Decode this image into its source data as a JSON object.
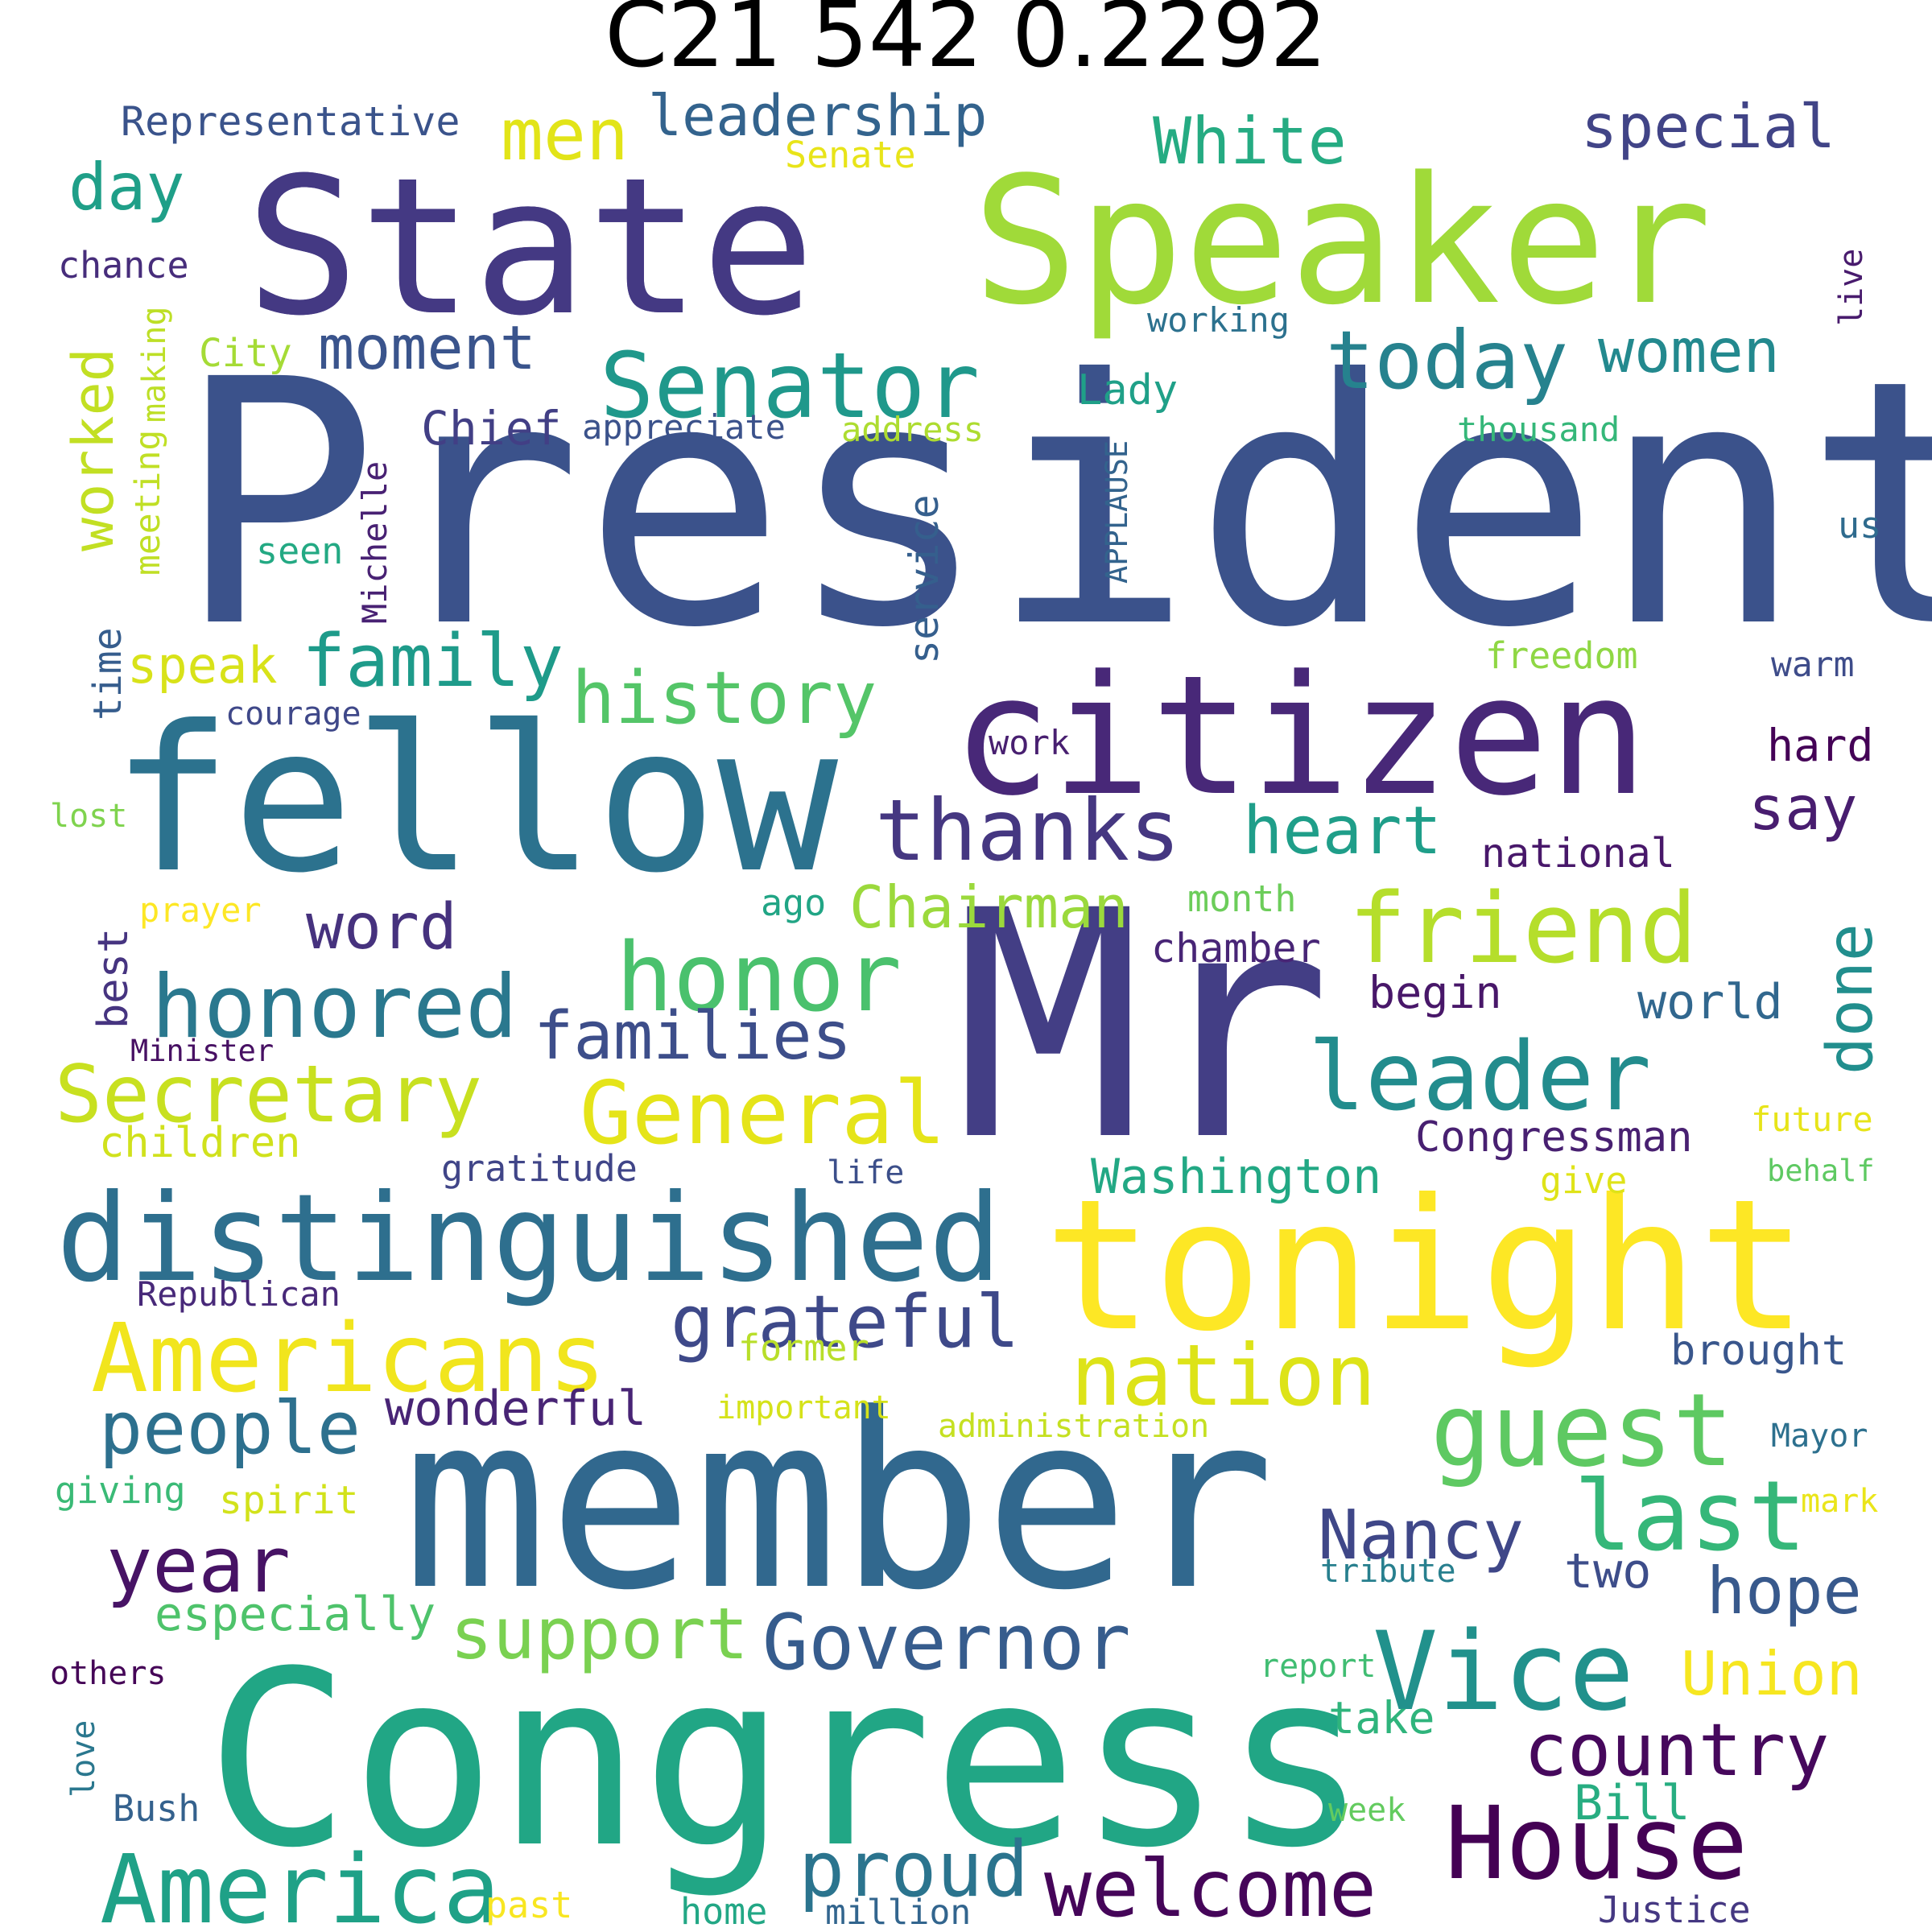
{
  "title": "C21 542 0.2292",
  "words": [
    {
      "text": "President",
      "color": "#3b528b"
    },
    {
      "text": "Mr",
      "color": "#433e85"
    },
    {
      "text": "member",
      "color": "#31688e"
    },
    {
      "text": "Congress",
      "color": "#21a685"
    },
    {
      "text": "fellow",
      "color": "#2c728e"
    },
    {
      "text": "citizen",
      "color": "#482878"
    },
    {
      "text": "State",
      "color": "#443983"
    },
    {
      "text": "Speaker",
      "color": "#a0da39"
    },
    {
      "text": "tonight",
      "color": "#fde725"
    },
    {
      "text": "distinguished",
      "color": "#2e6f8e"
    },
    {
      "text": "Americans",
      "color": "#f1e51d"
    },
    {
      "text": "America",
      "color": "#1fa187"
    },
    {
      "text": "Vice",
      "color": "#21918c"
    },
    {
      "text": "House",
      "color": "#440154"
    },
    {
      "text": "Senator",
      "color": "#1f988b"
    },
    {
      "text": "friend",
      "color": "#b5de2b"
    },
    {
      "text": "honor",
      "color": "#4ac16d"
    },
    {
      "text": "leader",
      "color": "#228c8d"
    },
    {
      "text": "guest",
      "color": "#5ec962"
    },
    {
      "text": "nation",
      "color": "#dde318"
    },
    {
      "text": "General",
      "color": "#e5e419"
    },
    {
      "text": "Governor",
      "color": "#365c8d"
    },
    {
      "text": "honored",
      "color": "#2a788e"
    },
    {
      "text": "Secretary",
      "color": "#c8e020"
    },
    {
      "text": "thanks",
      "color": "#453781"
    },
    {
      "text": "today",
      "color": "#26828e"
    },
    {
      "text": "last",
      "color": "#35b779"
    },
    {
      "text": "welcome",
      "color": "#450559"
    },
    {
      "text": "proud",
      "color": "#2b748e"
    },
    {
      "text": "people",
      "color": "#2d708e"
    },
    {
      "text": "year",
      "color": "#471365"
    },
    {
      "text": "history",
      "color": "#54c568"
    },
    {
      "text": "grateful",
      "color": "#3e4989"
    },
    {
      "text": "country",
      "color": "#46085c"
    },
    {
      "text": "support",
      "color": "#7ad151"
    },
    {
      "text": "Nancy",
      "color": "#3f4788"
    },
    {
      "text": "hope",
      "color": "#38598c"
    },
    {
      "text": "Union",
      "color": "#f6e620"
    },
    {
      "text": "family",
      "color": "#1e9b8a"
    },
    {
      "text": "families",
      "color": "#3d4e8a"
    },
    {
      "text": "heart",
      "color": "#1f9e89"
    },
    {
      "text": "Chairman",
      "color": "#9bd93c"
    },
    {
      "text": "women",
      "color": "#23898e"
    },
    {
      "text": "special",
      "color": "#414487"
    },
    {
      "text": "White",
      "color": "#25ab82"
    },
    {
      "text": "State",
      "color": "#443983"
    },
    {
      "text": "men",
      "color": "#e2e418"
    },
    {
      "text": "day",
      "color": "#1f9f88"
    },
    {
      "text": "moment",
      "color": "#3a548c"
    },
    {
      "text": "word",
      "color": "#46327e"
    },
    {
      "text": "done",
      "color": "#218e8d"
    },
    {
      "text": "say",
      "color": "#481d6f"
    },
    {
      "text": "leadership",
      "color": "#33638d"
    },
    {
      "text": "worked",
      "color": "#c2df23"
    },
    {
      "text": "Washington",
      "color": "#22a884"
    },
    {
      "text": "wonderful",
      "color": "#482475"
    },
    {
      "text": "world",
      "color": "#31678e"
    },
    {
      "text": "speak",
      "color": "#d8e219"
    },
    {
      "text": "Bill",
      "color": "#27ad81"
    },
    {
      "text": "Congressman",
      "color": "#482071"
    },
    {
      "text": "two",
      "color": "#3d4d8a"
    },
    {
      "text": "especially",
      "color": "#4ec36b"
    },
    {
      "text": "take",
      "color": "#2fb47c"
    },
    {
      "text": "begin",
      "color": "#481769"
    },
    {
      "text": "national",
      "color": "#48186a"
    },
    {
      "text": "hard",
      "color": "#440256"
    },
    {
      "text": "brought",
      "color": "#39568c"
    },
    {
      "text": "Chief",
      "color": "#423f85"
    },
    {
      "text": "Lady",
      "color": "#1fa088"
    },
    {
      "text": "service",
      "color": "#355f8d"
    },
    {
      "text": "chamber",
      "color": "#482576"
    },
    {
      "text": "best",
      "color": "#463480"
    },
    {
      "text": "time",
      "color": "#365d8d"
    },
    {
      "text": "spirit",
      "color": "#d2e21b"
    },
    {
      "text": "Representative",
      "color": "#3a538b"
    },
    {
      "text": "Senate",
      "color": "#e8e419"
    },
    {
      "text": "chance",
      "color": "#472d7b"
    },
    {
      "text": "City",
      "color": "#a5db36"
    },
    {
      "text": "making",
      "color": "#bddf26"
    },
    {
      "text": "meeting",
      "color": "#c0df25"
    },
    {
      "text": "Michelle",
      "color": "#482173"
    },
    {
      "text": "APPLAUSE",
      "color": "#33638d"
    },
    {
      "text": "appreciate",
      "color": "#3b528b"
    },
    {
      "text": "address",
      "color": "#addc30"
    },
    {
      "text": "working",
      "color": "#2c718e"
    },
    {
      "text": "thousand",
      "color": "#35b779"
    },
    {
      "text": "live",
      "color": "#481b6d"
    },
    {
      "text": "us",
      "color": "#2f6b8e"
    },
    {
      "text": "seen",
      "color": "#23a983"
    },
    {
      "text": "freedom",
      "color": "#8fd744"
    },
    {
      "text": "warm",
      "color": "#3e4c8a"
    },
    {
      "text": "courage",
      "color": "#3f4889"
    },
    {
      "text": "work",
      "color": "#481f70"
    },
    {
      "text": "lost",
      "color": "#7fd34e"
    },
    {
      "text": "prayer",
      "color": "#fde725"
    },
    {
      "text": "ago",
      "color": "#21a585"
    },
    {
      "text": "month",
      "color": "#6ccd5a"
    },
    {
      "text": "Minister",
      "color": "#471063"
    },
    {
      "text": "children",
      "color": "#d0e11c"
    },
    {
      "text": "gratitude",
      "color": "#404588"
    },
    {
      "text": "life",
      "color": "#3c4f8a"
    },
    {
      "text": "future",
      "color": "#e7e419"
    },
    {
      "text": "behalf",
      "color": "#5ec962"
    },
    {
      "text": "give",
      "color": "#dfe318"
    },
    {
      "text": "Republican",
      "color": "#482979"
    },
    {
      "text": "former",
      "color": "#b8de29"
    },
    {
      "text": "important",
      "color": "#d5e21a"
    },
    {
      "text": "administration",
      "color": "#c5e021"
    },
    {
      "text": "Mayor",
      "color": "#2d708e"
    },
    {
      "text": "giving",
      "color": "#3aba76"
    },
    {
      "text": "mark",
      "color": "#eae51a"
    },
    {
      "text": "tribute",
      "color": "#277f8e"
    },
    {
      "text": "others",
      "color": "#450457"
    },
    {
      "text": "report",
      "color": "#40bd72"
    },
    {
      "text": "love",
      "color": "#2a778e"
    },
    {
      "text": "Bush",
      "color": "#34618d"
    },
    {
      "text": "week",
      "color": "#63cb5f"
    },
    {
      "text": "past",
      "color": "#f8e621"
    },
    {
      "text": "home",
      "color": "#22a785"
    },
    {
      "text": "million",
      "color": "#32658e"
    },
    {
      "text": "Justice",
      "color": "#453882"
    }
  ]
}
